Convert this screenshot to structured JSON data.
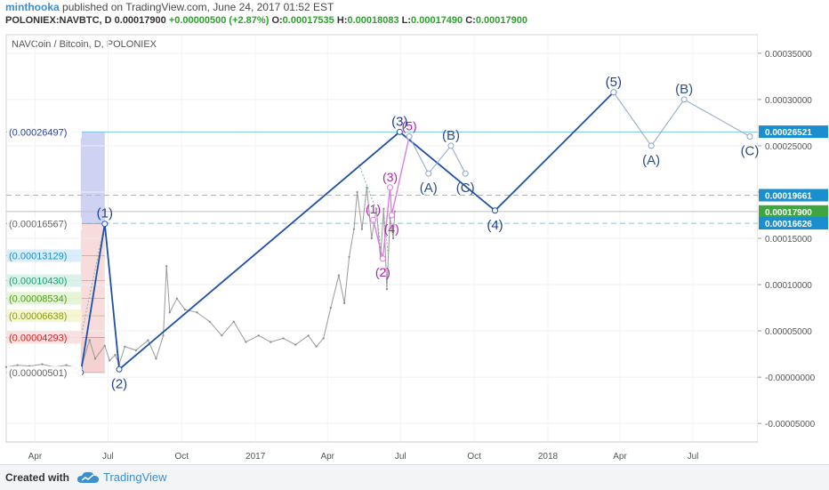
{
  "header": {
    "author": "minthooka",
    "published": "published on TradingView.com, June 24, 2017 01:52 EST",
    "symbol_line": "POLONIEX:NAVBTC, D",
    "last": "0.00017900",
    "change": "+0.00000500 (+2.87%)",
    "o_label": "O:",
    "o_value": "0.00017535",
    "h_label": "H:",
    "h_value": "0.00018083",
    "l_label": "L:",
    "l_value": "0.00017490",
    "c_label": "C:",
    "c_value": "0.00017900"
  },
  "footer": {
    "created_with": "Created with",
    "brand": "TradingView"
  },
  "chart_data": {
    "type": "line",
    "title": "NAVCoin / Bitcoin, D, POLONIEX",
    "y_axis": {
      "ylim": [
        -7e-05,
        0.00037
      ],
      "ticks": [
        "0.00035000",
        "0.00030000",
        "0.00025000",
        "0.00020000",
        "0.00015000",
        "0.00010000",
        "0.00005000",
        "-0.00000000",
        "-0.00005000"
      ],
      "tick_values": [
        0.00035,
        0.0003,
        0.00025,
        0.0002,
        0.00015,
        0.0001,
        5e-05,
        0,
        -5e-05
      ]
    },
    "x_axis": {
      "ticks": [
        "Apr",
        "Jul",
        "Oct",
        "2017",
        "Apr",
        "Jul",
        "Oct",
        "2018",
        "Apr",
        "Jul"
      ],
      "tick_dates": [
        "2016-04-01",
        "2016-07-01",
        "2016-10-01",
        "2017-01-01",
        "2017-04-01",
        "2017-07-01",
        "2017-10-01",
        "2018-01-01",
        "2018-04-01",
        "2018-07-01"
      ],
      "range": [
        "2016-02-25",
        "2018-09-20"
      ]
    },
    "fib_levels": [
      {
        "label": "(0.00026497)",
        "value": 0.00026497,
        "color": "#2c3ea8",
        "box": "#ffffff"
      },
      {
        "label": "(0.00016567)",
        "value": 0.00016567,
        "color": "#666666",
        "box": "#ffffff"
      },
      {
        "label": "(0.00013129)",
        "value": 0.00013129,
        "color": "#1a8fcf",
        "box": "#d6ecf9"
      },
      {
        "label": "(0.00010430)",
        "value": 0.0001043,
        "color": "#1b9c74",
        "box": "#d7f1e6"
      },
      {
        "label": "(0.00008534)",
        "value": 8.534e-05,
        "color": "#4f9a1e",
        "box": "#e2f4d2"
      },
      {
        "label": "(0.00006638)",
        "value": 6.638e-05,
        "color": "#8a9a17",
        "box": "#f3f5cf"
      },
      {
        "label": "(0.00004293)",
        "value": 4.293e-05,
        "color": "#cc2222",
        "box": "#f9dddd"
      },
      {
        "label": "(0.00000501)",
        "value": 5.01e-06,
        "color": "#666666",
        "box": "#ffffff"
      }
    ],
    "fib_zone_bands": [
      {
        "from": 0.00016567,
        "to": 0.00026497,
        "color": "#c7cbf1"
      },
      {
        "from": 4.293e-05,
        "to": 0.00016567,
        "color": "#f7d6d6"
      },
      {
        "from": 5.01e-06,
        "to": 4.293e-05,
        "color": "#f5c9c9"
      }
    ],
    "fib_zone_dates": [
      "2016-05-28",
      "2016-06-27"
    ],
    "price_labels": [
      {
        "label": "0.00026521",
        "value": 0.00026521,
        "color": "#1a8fcf"
      },
      {
        "label": "0.00019661",
        "value": 0.00019661,
        "color": "#1a8fcf"
      },
      {
        "label": "0.00017900",
        "value": 0.000179,
        "color": "#3fa53f"
      },
      {
        "label": "0.00016626",
        "value": 0.00016626,
        "color": "#1a8fcf"
      }
    ],
    "hlines": [
      {
        "value": 0.00026497,
        "color": "#7cc7e6",
        "dash": false
      },
      {
        "value": 0.00019661,
        "color": "#7cc7e6",
        "dash": true
      },
      {
        "value": 0.000179,
        "color": "#bfbfbf",
        "dash": false
      },
      {
        "value": 0.00016626,
        "color": "#7cc7e6",
        "dash": true
      }
    ],
    "price_path": [
      [
        "2016-02-25",
        1.1e-05
      ],
      [
        "2016-03-10",
        1.3e-05
      ],
      [
        "2016-03-25",
        1.2e-05
      ],
      [
        "2016-04-10",
        1.4e-05
      ],
      [
        "2016-04-25",
        1.1e-05
      ],
      [
        "2016-05-10",
        1.3e-05
      ],
      [
        "2016-05-28",
        9e-06
      ],
      [
        "2016-06-08",
        4e-05
      ],
      [
        "2016-06-15",
        2e-05
      ],
      [
        "2016-06-27",
        3.4e-05
      ],
      [
        "2016-07-03",
        1.8e-05
      ],
      [
        "2016-07-10",
        2.4e-05
      ],
      [
        "2016-07-15",
        1.4e-05
      ],
      [
        "2016-07-22",
        3.3e-05
      ],
      [
        "2016-08-05",
        2.9e-05
      ],
      [
        "2016-08-20",
        4e-05
      ],
      [
        "2016-08-30",
        2e-05
      ],
      [
        "2016-09-08",
        4.5e-05
      ],
      [
        "2016-09-12",
        0.00012
      ],
      [
        "2016-09-16",
        7e-05
      ],
      [
        "2016-09-25",
        8.5e-05
      ],
      [
        "2016-10-05",
        7.3e-05
      ],
      [
        "2016-10-20",
        7e-05
      ],
      [
        "2016-11-05",
        6e-05
      ],
      [
        "2016-11-20",
        4.5e-05
      ],
      [
        "2016-12-05",
        6e-05
      ],
      [
        "2016-12-20",
        3.8e-05
      ],
      [
        "2017-01-05",
        4.5e-05
      ],
      [
        "2017-01-20",
        3.8e-05
      ],
      [
        "2017-02-05",
        4.2e-05
      ],
      [
        "2017-02-20",
        3.5e-05
      ],
      [
        "2017-03-08",
        4.5e-05
      ],
      [
        "2017-03-18",
        3.3e-05
      ],
      [
        "2017-03-27",
        4.2e-05
      ],
      [
        "2017-04-05",
        7.5e-05
      ],
      [
        "2017-04-15",
        0.00011
      ],
      [
        "2017-04-22",
        8e-05
      ],
      [
        "2017-04-28",
        0.00013
      ],
      [
        "2017-05-04",
        0.00016
      ],
      [
        "2017-05-08",
        0.0002
      ],
      [
        "2017-05-14",
        0.00016
      ],
      [
        "2017-05-20",
        0.000205
      ],
      [
        "2017-05-26",
        0.00015
      ],
      [
        "2017-06-01",
        0.000182
      ],
      [
        "2017-06-06",
        0.000128
      ],
      [
        "2017-06-10",
        0.000182
      ],
      [
        "2017-06-14",
        9.5e-05
      ],
      [
        "2017-06-18",
        0.000172
      ],
      [
        "2017-06-22",
        0.00015
      ],
      [
        "2017-06-24",
        0.000179
      ]
    ],
    "wave_primary": [
      {
        "date": "2016-05-28",
        "value": 5.01e-06,
        "label": ""
      },
      {
        "date": "2016-06-27",
        "value": 0.00016567,
        "label": "(1)"
      },
      {
        "date": "2016-07-15",
        "value": 8.5e-06,
        "label": "(2)"
      },
      {
        "date": "2017-06-30",
        "value": 0.00026497,
        "label": "(3)"
      },
      {
        "date": "2017-10-27",
        "value": 0.00018,
        "label": "(4)"
      },
      {
        "date": "2018-03-24",
        "value": 0.00030777,
        "label": "(5)"
      }
    ],
    "wave_minor": [
      {
        "date": "2017-05-28",
        "value": 0.00017,
        "label": "(1)"
      },
      {
        "date": "2017-06-09",
        "value": 0.000128,
        "label": "(2)"
      },
      {
        "date": "2017-06-18",
        "value": 0.000205,
        "label": "(3)"
      },
      {
        "date": "2017-06-20",
        "value": 0.000175,
        "label": "(4)"
      },
      {
        "date": "2017-07-12",
        "value": 0.00026,
        "label": "(5)"
      }
    ],
    "abc_first": [
      {
        "date": "2017-07-12",
        "value": 0.00026,
        "label": ""
      },
      {
        "date": "2017-08-05",
        "value": 0.00022,
        "label": "(A)"
      },
      {
        "date": "2017-09-02",
        "value": 0.00025,
        "label": "(B)"
      },
      {
        "date": "2017-09-20",
        "value": 0.00022,
        "label": "(C)"
      }
    ],
    "abc_second": [
      {
        "date": "2018-03-24",
        "value": 0.00030777,
        "label": ""
      },
      {
        "date": "2018-05-10",
        "value": 0.00025,
        "label": "(A)"
      },
      {
        "date": "2018-06-20",
        "value": 0.0003,
        "label": "(B)"
      },
      {
        "date": "2018-09-10",
        "value": 0.00026,
        "label": "(C)"
      }
    ],
    "faint_lines": [
      [
        [
          "2016-06-27",
          0.00016567
        ],
        [
          "2016-05-28",
          4.25e-05
        ]
      ],
      [
        [
          "2017-05-10",
          0.00023
        ],
        [
          "2017-06-01",
          0.00018
        ],
        [
          "2017-06-06",
          0.00014
        ]
      ],
      [
        [
          "2017-06-10",
          0.00018
        ],
        [
          "2017-06-16",
          0.00013
        ]
      ]
    ],
    "grid": true
  }
}
